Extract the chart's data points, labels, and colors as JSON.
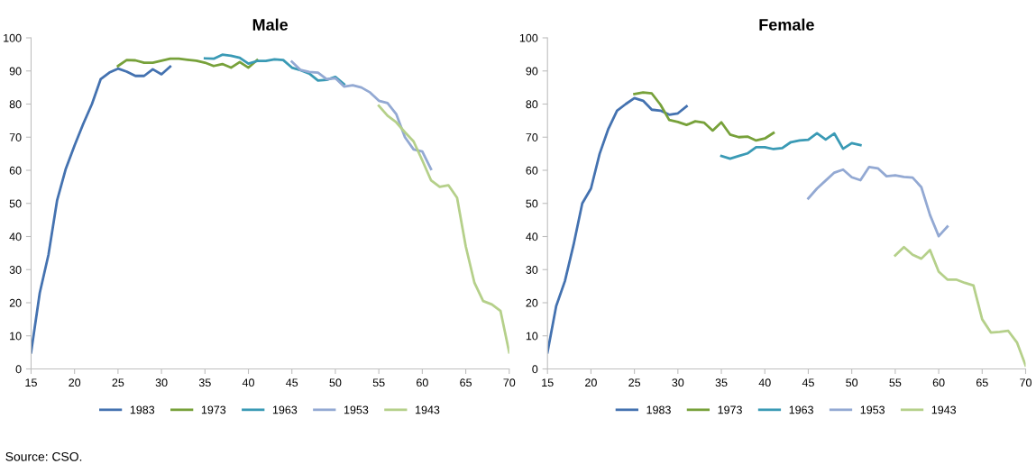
{
  "chart_data": [
    {
      "type": "line",
      "title": "Male",
      "xlim": [
        15,
        70
      ],
      "xticks": [
        15,
        20,
        25,
        30,
        35,
        40,
        45,
        50,
        55,
        60,
        65,
        70
      ],
      "ylim": [
        0,
        100
      ],
      "yticks": [
        0,
        10,
        20,
        30,
        40,
        50,
        60,
        70,
        80,
        90,
        100
      ],
      "grid": false,
      "legend": "bottom",
      "annotations": [
        "Source: CSO."
      ],
      "series": [
        {
          "name": "1983",
          "color": "#4472b0",
          "x": [
            15,
            16,
            17,
            18,
            19,
            20,
            21,
            22,
            23,
            24,
            25,
            26,
            27,
            28,
            29,
            30,
            31
          ],
          "values": [
            5,
            23,
            34.5,
            51,
            60.5,
            67.5,
            74,
            80,
            87.5,
            89.5,
            90.7,
            89.8,
            88.5,
            88.5,
            90.5,
            89,
            91.3
          ]
        },
        {
          "name": "1973",
          "color": "#77a13a",
          "x": [
            25,
            26,
            27,
            28,
            29,
            30,
            31,
            32,
            33,
            34,
            35,
            36,
            37,
            38,
            39,
            40,
            41
          ],
          "values": [
            91.5,
            93.3,
            93.2,
            92.5,
            92.5,
            93.1,
            93.7,
            93.7,
            93.4,
            93.1,
            92.5,
            91.5,
            92.1,
            91,
            92.7,
            91,
            93.3
          ]
        },
        {
          "name": "1963",
          "color": "#3a9ab5",
          "x": [
            35,
            36,
            37,
            38,
            39,
            40,
            41,
            42,
            43,
            44,
            45,
            46,
            47,
            48,
            49,
            50,
            51
          ],
          "values": [
            93.8,
            93.7,
            94.9,
            94.6,
            94,
            92.2,
            93,
            93,
            93.5,
            93.3,
            91,
            90.2,
            89.2,
            87.1,
            87.3,
            88.2,
            86
          ]
        },
        {
          "name": "1953",
          "color": "#93a9d3",
          "x": [
            45,
            46,
            47,
            48,
            49,
            50,
            51,
            52,
            53,
            54,
            55,
            56,
            57,
            58,
            59,
            60,
            61
          ],
          "values": [
            92.8,
            90.3,
            89.7,
            89.5,
            87.5,
            87.8,
            85.3,
            85.7,
            85,
            83.5,
            81,
            80.3,
            77,
            70,
            66.3,
            65.7,
            60.4
          ]
        },
        {
          "name": "1943",
          "color": "#b5d08a",
          "x": [
            55,
            56,
            57,
            58,
            59,
            60,
            61,
            62,
            63,
            64,
            65,
            66,
            67,
            68,
            69,
            70
          ],
          "values": [
            79.5,
            76.5,
            74.5,
            71.5,
            68.7,
            63,
            57,
            55,
            55.5,
            51.7,
            37,
            26,
            20.5,
            19.5,
            17.5,
            5
          ]
        }
      ]
    },
    {
      "type": "line",
      "title": "Female",
      "xlim": [
        15,
        70
      ],
      "xticks": [
        15,
        20,
        25,
        30,
        35,
        40,
        45,
        50,
        55,
        60,
        65,
        70
      ],
      "ylim": [
        0,
        100
      ],
      "yticks": [
        0,
        10,
        20,
        30,
        40,
        50,
        60,
        70,
        80,
        90,
        100
      ],
      "grid": false,
      "legend": "bottom",
      "series": [
        {
          "name": "1983",
          "color": "#4472b0",
          "x": [
            15,
            16,
            17,
            18,
            19,
            20,
            21,
            22,
            23,
            24,
            25,
            26,
            27,
            28,
            29,
            30,
            31
          ],
          "values": [
            5,
            19,
            26.5,
            37.5,
            50,
            54.5,
            65,
            72.5,
            78,
            80,
            81.8,
            81,
            78.3,
            78,
            76.8,
            77.2,
            79.3
          ]
        },
        {
          "name": "1973",
          "color": "#77a13a",
          "x": [
            25,
            26,
            27,
            28,
            29,
            30,
            31,
            32,
            33,
            34,
            35,
            36,
            37,
            38,
            39,
            40,
            41
          ],
          "values": [
            83,
            83.5,
            83.2,
            79.8,
            75.2,
            74.6,
            73.7,
            74.8,
            74.4,
            72,
            74.5,
            70.8,
            70,
            70.2,
            69,
            69.6,
            71.3
          ]
        },
        {
          "name": "1963",
          "color": "#3a9ab5",
          "x": [
            35,
            36,
            37,
            38,
            39,
            40,
            41,
            42,
            43,
            44,
            45,
            46,
            47,
            48,
            49,
            50,
            51
          ],
          "values": [
            64.3,
            63.5,
            64.3,
            65.1,
            67,
            67,
            66.4,
            66.7,
            68.5,
            69,
            69.2,
            71.2,
            69.3,
            71.1,
            66.5,
            68.2,
            67.6
          ]
        },
        {
          "name": "1953",
          "color": "#93a9d3",
          "x": [
            45,
            46,
            47,
            48,
            49,
            50,
            51,
            52,
            53,
            54,
            55,
            56,
            57,
            58,
            59,
            60,
            61
          ],
          "values": [
            51.5,
            54.5,
            56.9,
            59.3,
            60.2,
            57.9,
            57,
            61,
            60.6,
            58.2,
            58.5,
            58,
            57.8,
            54.9,
            46.5,
            40.1,
            43
          ]
        },
        {
          "name": "1943",
          "color": "#b5d08a",
          "x": [
            55,
            56,
            57,
            58,
            59,
            60,
            61,
            62,
            63,
            64,
            65,
            66,
            67,
            68,
            69,
            70
          ],
          "values": [
            34.3,
            36.8,
            34.5,
            33.3,
            35.9,
            29.4,
            27,
            27,
            26,
            25.2,
            15,
            11,
            11.2,
            11.5,
            8,
            1
          ]
        }
      ]
    }
  ]
}
